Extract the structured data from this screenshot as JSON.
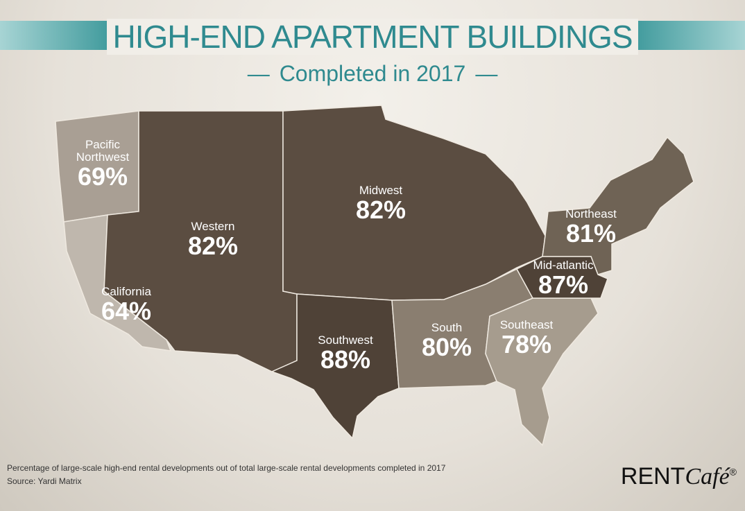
{
  "header": {
    "title": "HIGH-END APARTMENT BUILDINGS",
    "subtitle": "Completed in 2017"
  },
  "map": {
    "regions": [
      {
        "name": "Pacific Northwest",
        "value": 69,
        "value_label": "69%",
        "color": "#a99f94"
      },
      {
        "name": "California",
        "value": 64,
        "value_label": "64%",
        "color": "#bfb7ad"
      },
      {
        "name": "Western",
        "value": 82,
        "value_label": "82%",
        "color": "#5b4d41"
      },
      {
        "name": "Midwest",
        "value": 82,
        "value_label": "82%",
        "color": "#5b4d41"
      },
      {
        "name": "Southwest",
        "value": 88,
        "value_label": "88%",
        "color": "#4f4237"
      },
      {
        "name": "South",
        "value": 80,
        "value_label": "80%",
        "color": "#8a7e70"
      },
      {
        "name": "Southeast",
        "value": 78,
        "value_label": "78%",
        "color": "#a69c8e"
      },
      {
        "name": "Northeast",
        "value": 81,
        "value_label": "81%",
        "color": "#6f6355"
      },
      {
        "name": "Mid-atlantic",
        "value": 87,
        "value_label": "87%",
        "color": "#4f4237"
      }
    ]
  },
  "footer": {
    "note": "Percentage of large-scale high-end rental developments out of total large-scale rental developments completed in 2017",
    "source": "Source: Yardi Matrix",
    "brand_main": "RENT",
    "brand_italic": "Café",
    "brand_mark": "®"
  }
}
